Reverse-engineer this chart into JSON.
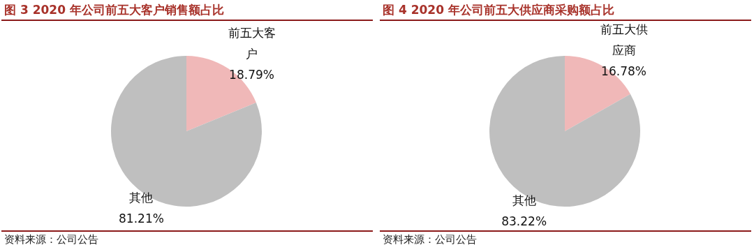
{
  "chart_data": [
    {
      "type": "pie",
      "title": "图 3   2020 年公司前五大客户销售额占比",
      "categories": [
        "前五大客户",
        "其他"
      ],
      "values": [
        18.79,
        81.21
      ],
      "value_labels": [
        "18.79%",
        "81.21%"
      ],
      "colors": [
        "#f0b8b8",
        "#bfbfbf"
      ],
      "annotations": [
        "资料来源：公司公告"
      ]
    },
    {
      "type": "pie",
      "title": "图 4   2020 年公司前五大供应商采购额占比",
      "categories": [
        "前五大供应商",
        "其他"
      ],
      "values": [
        16.78,
        83.22
      ],
      "value_labels": [
        "16.78%",
        "83.22%"
      ],
      "colors": [
        "#f0b8b8",
        "#bfbfbf"
      ],
      "annotations": [
        "资料来源：公司公告"
      ]
    }
  ]
}
